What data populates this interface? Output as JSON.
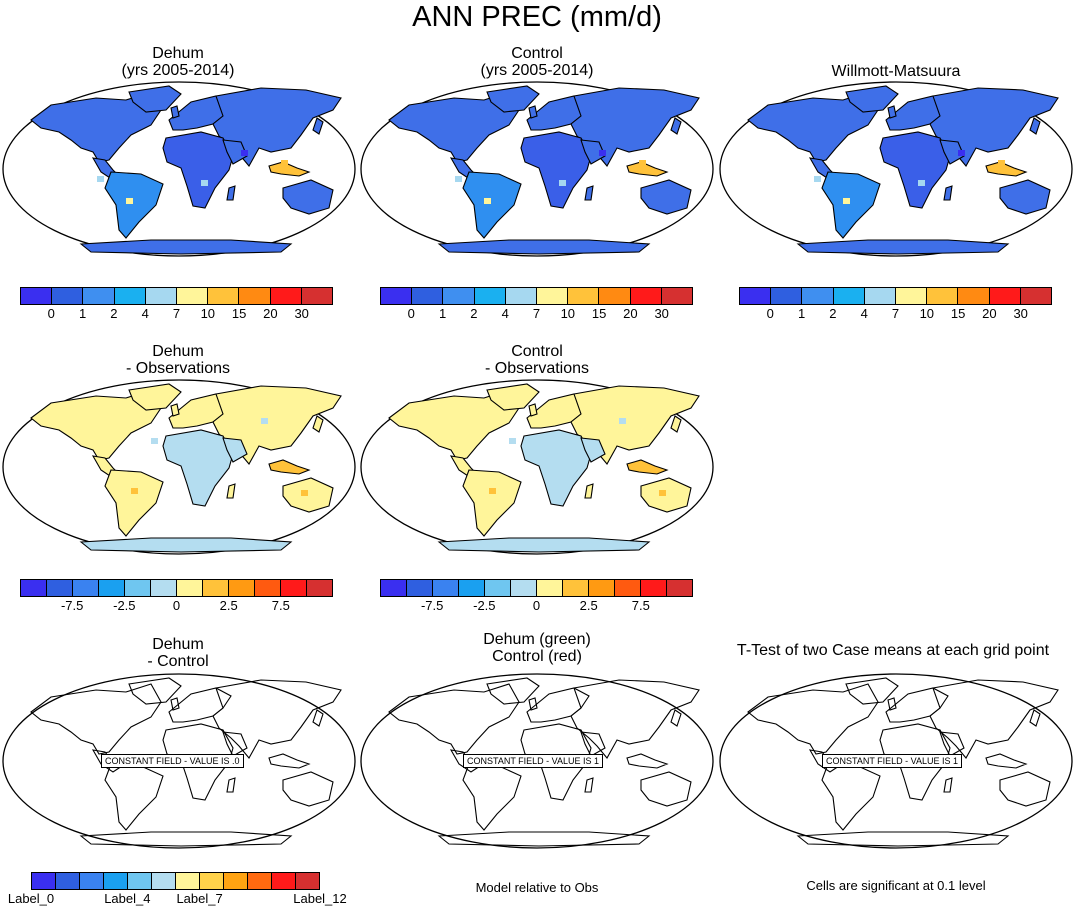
{
  "main_title": "ANN PREC (mm/d)",
  "panels": [
    {
      "id": "dehum",
      "title": "Dehum\n(yrs 2005-2014)",
      "fill": "abs"
    },
    {
      "id": "control",
      "title": "Control\n(yrs 2005-2014)",
      "fill": "abs"
    },
    {
      "id": "obs",
      "title": "Willmott-Matsuura",
      "fill": "abs"
    },
    {
      "id": "dehum-obs",
      "title": "Dehum\n- Observations",
      "fill": "diff"
    },
    {
      "id": "control-obs",
      "title": "Control\n- Observations",
      "fill": "diff"
    },
    {
      "id": "dehum-control",
      "title": "Dehum\n- Control",
      "fill": "none",
      "constant": "CONSTANT FIELD - VALUE IS .0"
    },
    {
      "id": "green-red",
      "title": "Dehum (green)\nControl (red)",
      "fill": "none",
      "constant": "CONSTANT FIELD - VALUE IS 1"
    },
    {
      "id": "ttest",
      "title": "T-Test of two Case means at each grid point",
      "fill": "none",
      "constant": "CONSTANT FIELD - VALUE IS 1"
    }
  ],
  "colorbar_abs": {
    "colors": [
      "#3a2ff0",
      "#2f5fe0",
      "#3f8ff0",
      "#1ab0f0",
      "#a6d8f0",
      "#fff59a",
      "#ffc23a",
      "#ff8a12",
      "#ff1a1a",
      "#d63030"
    ],
    "labels": [
      "0",
      "1",
      "2",
      "4",
      "7",
      "10",
      "15",
      "20",
      "30"
    ]
  },
  "colorbar_diff": {
    "colors": [
      "#3a2ff0",
      "#2f5fe0",
      "#3a82f0",
      "#1aa0f0",
      "#6fc6f0",
      "#b4ddf0",
      "#fff59a",
      "#ffc23a",
      "#ff9a12",
      "#ff5a10",
      "#ff1a1a",
      "#d63030"
    ],
    "labels": [
      "-7.5",
      "-2.5",
      "0",
      "2.5",
      "7.5"
    ]
  },
  "colorbar_label": {
    "colors": [
      "#3a2ff0",
      "#2f5fe0",
      "#3a82f0",
      "#1aa0f0",
      "#6fc6f0",
      "#b4ddf0",
      "#fff59a",
      "#ffd24a",
      "#ffa312",
      "#ff6a10",
      "#ff1a1a",
      "#d63030"
    ],
    "labels": [
      "Label_0",
      "Label_4",
      "Label_7",
      "Label_12"
    ]
  },
  "notes": {
    "model_relative": "Model relative to Obs",
    "significance": "Cells are significant at 0.1 level"
  },
  "colors": {
    "abs_ocean_land": "#3f6fe8",
    "abs_wet": "#a6d8f0",
    "abs_wettest": "#ffc23a",
    "diff_main": "#fff59a",
    "diff_neg": "#b4ddf0",
    "diff_pos": "#ffc23a"
  }
}
